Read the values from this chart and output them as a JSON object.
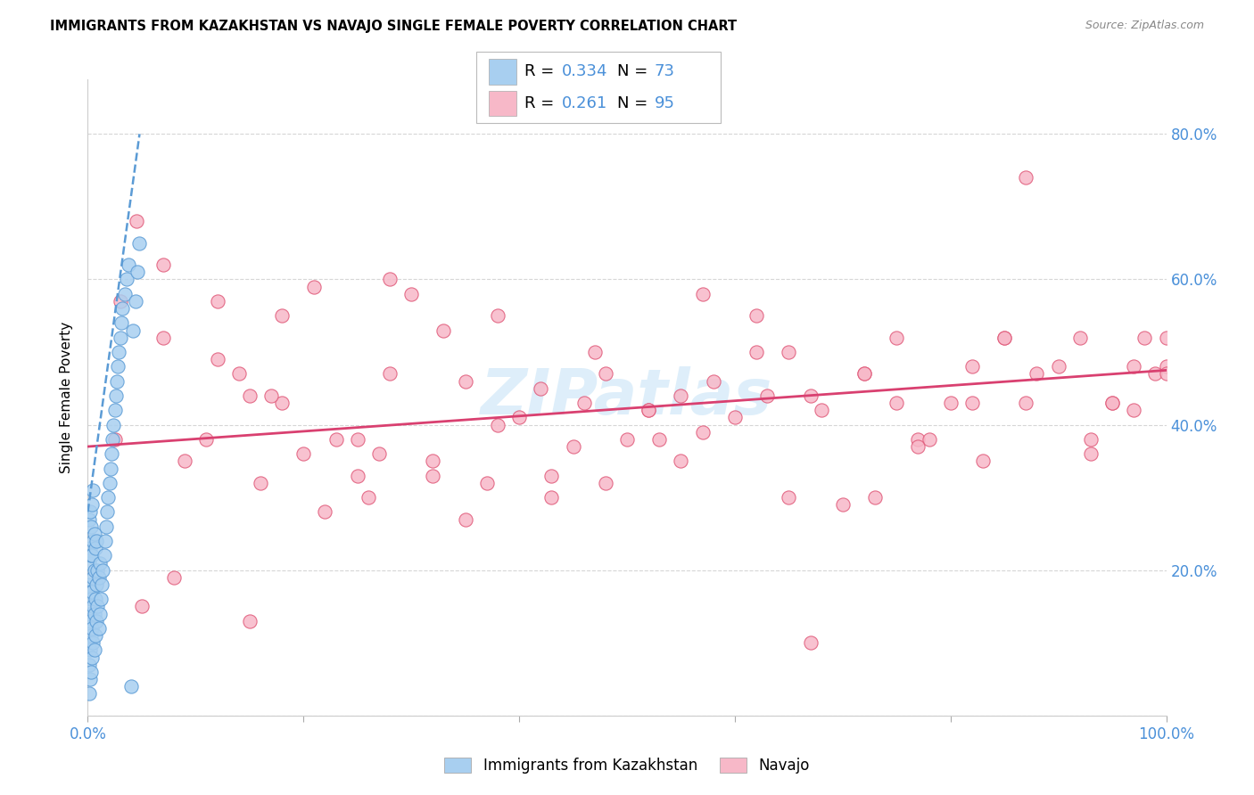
{
  "title": "IMMIGRANTS FROM KAZAKHSTAN VS NAVAJO SINGLE FEMALE POVERTY CORRELATION CHART",
  "source": "Source: ZipAtlas.com",
  "ylabel": "Single Female Poverty",
  "xlim": [
    0.0,
    1.0
  ],
  "ylim": [
    0.0,
    0.875
  ],
  "kazakhstan_color": "#a8cff0",
  "kazakhstan_edge_color": "#5b9bd5",
  "navajo_color": "#f7b8c8",
  "navajo_edge_color": "#e05878",
  "trendline_kaz_color": "#5b9bd5",
  "trendline_navajo_color": "#d94070",
  "watermark_color": "#d0e8f8",
  "R_kaz": 0.334,
  "N_kaz": 73,
  "R_navajo": 0.261,
  "N_navajo": 95,
  "legend_kaz_label": "Immigrants from Kazakhstan",
  "legend_navajo_label": "Navajo",
  "navajo_x": [
    0.025,
    0.045,
    0.07,
    0.09,
    0.12,
    0.14,
    0.16,
    0.18,
    0.21,
    0.23,
    0.26,
    0.28,
    0.3,
    0.12,
    0.15,
    0.2,
    0.25,
    0.32,
    0.35,
    0.38,
    0.4,
    0.43,
    0.46,
    0.48,
    0.5,
    0.52,
    0.55,
    0.57,
    0.6,
    0.62,
    0.65,
    0.67,
    0.7,
    0.72,
    0.75,
    0.77,
    0.8,
    0.82,
    0.85,
    0.87,
    0.9,
    0.92,
    0.95,
    0.97,
    1.0,
    0.97,
    0.98,
    0.99,
    1.0,
    1.0,
    0.95,
    0.93,
    0.88,
    0.85,
    0.82,
    0.78,
    0.75,
    0.72,
    0.68,
    0.65,
    0.62,
    0.58,
    0.55,
    0.52,
    0.48,
    0.45,
    0.42,
    0.38,
    0.35,
    0.32,
    0.28,
    0.25,
    0.22,
    0.18,
    0.15,
    0.11,
    0.08,
    0.05,
    0.03,
    0.33,
    0.43,
    0.53,
    0.63,
    0.73,
    0.83,
    0.93,
    0.07,
    0.17,
    0.27,
    0.37,
    0.47,
    0.57,
    0.67,
    0.77,
    0.87
  ],
  "navajo_y": [
    0.38,
    0.68,
    0.52,
    0.35,
    0.57,
    0.47,
    0.32,
    0.43,
    0.59,
    0.38,
    0.3,
    0.47,
    0.58,
    0.49,
    0.44,
    0.36,
    0.33,
    0.35,
    0.46,
    0.55,
    0.41,
    0.3,
    0.43,
    0.47,
    0.38,
    0.42,
    0.44,
    0.39,
    0.41,
    0.5,
    0.3,
    0.44,
    0.29,
    0.47,
    0.43,
    0.38,
    0.43,
    0.48,
    0.52,
    0.43,
    0.48,
    0.52,
    0.43,
    0.48,
    0.48,
    0.42,
    0.52,
    0.47,
    0.47,
    0.52,
    0.43,
    0.38,
    0.47,
    0.52,
    0.43,
    0.38,
    0.52,
    0.47,
    0.42,
    0.5,
    0.55,
    0.46,
    0.35,
    0.42,
    0.32,
    0.37,
    0.45,
    0.4,
    0.27,
    0.33,
    0.6,
    0.38,
    0.28,
    0.55,
    0.13,
    0.38,
    0.19,
    0.15,
    0.57,
    0.53,
    0.33,
    0.38,
    0.44,
    0.3,
    0.35,
    0.36,
    0.62,
    0.44,
    0.36,
    0.32,
    0.5,
    0.58,
    0.1,
    0.37,
    0.74
  ],
  "kaz_x_vals": [
    0.001,
    0.001,
    0.001,
    0.001,
    0.001,
    0.001,
    0.001,
    0.002,
    0.002,
    0.002,
    0.002,
    0.002,
    0.002,
    0.003,
    0.003,
    0.003,
    0.003,
    0.003,
    0.004,
    0.004,
    0.004,
    0.004,
    0.004,
    0.005,
    0.005,
    0.005,
    0.005,
    0.005,
    0.006,
    0.006,
    0.006,
    0.006,
    0.007,
    0.007,
    0.007,
    0.008,
    0.008,
    0.008,
    0.009,
    0.009,
    0.01,
    0.01,
    0.011,
    0.011,
    0.012,
    0.013,
    0.014,
    0.015,
    0.016,
    0.017,
    0.018,
    0.019,
    0.02,
    0.021,
    0.022,
    0.023,
    0.024,
    0.025,
    0.026,
    0.027,
    0.028,
    0.029,
    0.03,
    0.031,
    0.032,
    0.034,
    0.036,
    0.038,
    0.04,
    0.042,
    0.044,
    0.046,
    0.048
  ],
  "kaz_y_vals": [
    0.03,
    0.07,
    0.1,
    0.14,
    0.18,
    0.21,
    0.27,
    0.05,
    0.09,
    0.13,
    0.17,
    0.23,
    0.28,
    0.06,
    0.11,
    0.16,
    0.22,
    0.26,
    0.08,
    0.12,
    0.17,
    0.22,
    0.29,
    0.1,
    0.15,
    0.19,
    0.24,
    0.31,
    0.09,
    0.14,
    0.2,
    0.25,
    0.11,
    0.16,
    0.23,
    0.13,
    0.18,
    0.24,
    0.15,
    0.2,
    0.12,
    0.19,
    0.14,
    0.21,
    0.16,
    0.18,
    0.2,
    0.22,
    0.24,
    0.26,
    0.28,
    0.3,
    0.32,
    0.34,
    0.36,
    0.38,
    0.4,
    0.42,
    0.44,
    0.46,
    0.48,
    0.5,
    0.52,
    0.54,
    0.56,
    0.58,
    0.6,
    0.62,
    0.04,
    0.53,
    0.57,
    0.61,
    0.65
  ],
  "kaz_trend_x0": 0.0,
  "kaz_trend_y0": 0.28,
  "kaz_trend_x1": 0.048,
  "kaz_trend_y1": 0.8,
  "navajo_trend_x0": 0.0,
  "navajo_trend_y0": 0.37,
  "navajo_trend_x1": 1.0,
  "navajo_trend_y1": 0.475
}
